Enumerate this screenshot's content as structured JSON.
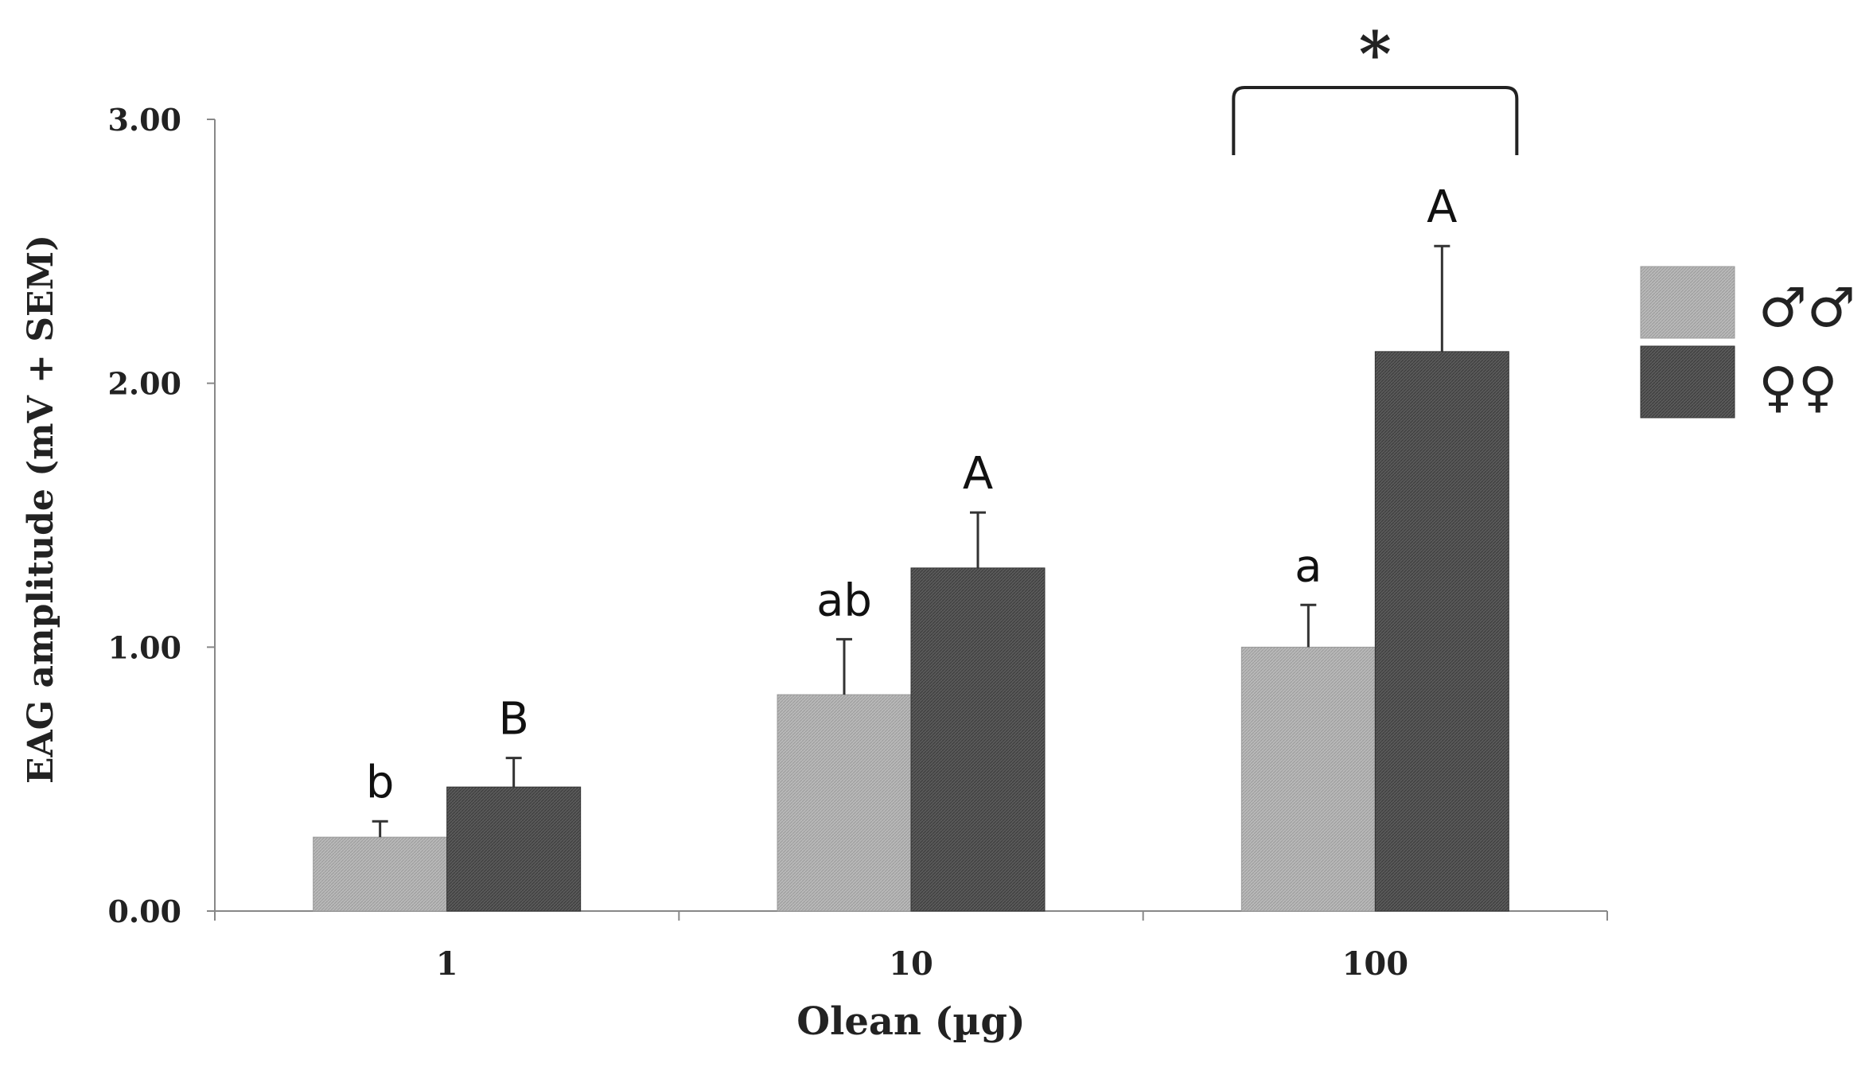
{
  "chart_data": {
    "type": "bar",
    "title": "",
    "xlabel": "Olean  (µg)",
    "ylabel": "EAG amplitude (mV + SEM)",
    "ylim": [
      0,
      3
    ],
    "yticks": [
      "0.00",
      "1.00",
      "2.00",
      "3.00"
    ],
    "ytick_values": [
      0,
      1,
      2,
      3
    ],
    "categories": [
      "1",
      "10",
      "100"
    ],
    "series": [
      {
        "name": "♂♂",
        "color": "#b3b3b3",
        "values": [
          0.28,
          0.82,
          1.0
        ],
        "errors": [
          0.06,
          0.21,
          0.16
        ],
        "letters": [
          "b",
          "ab",
          "a"
        ]
      },
      {
        "name": "♀♀",
        "color": "#555555",
        "values": [
          0.47,
          1.3,
          2.12
        ],
        "errors": [
          0.11,
          0.21,
          0.4
        ],
        "letters": [
          "B",
          "A",
          "A"
        ]
      }
    ],
    "annotations": [
      {
        "text": "*",
        "category": "100",
        "type": "significance-bracket"
      }
    ],
    "grid": false,
    "legend_position": "right"
  }
}
